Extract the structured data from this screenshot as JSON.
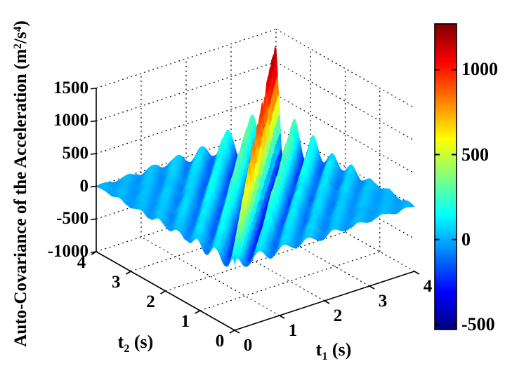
{
  "figure": {
    "background": "#ffffff",
    "zlabel": {
      "pre": "Auto-Covariance of the Acceleration (m",
      "sup1": "2",
      "mid": "/s",
      "sup2": "4",
      "post": ")"
    },
    "xlabel": {
      "base": "t",
      "sub": "1",
      "unit": " (s)"
    },
    "ylabel": {
      "base": "t",
      "sub": "2",
      "unit": " (s)"
    }
  },
  "chart_data": {
    "type": "surface",
    "title": "",
    "x_axis": {
      "label": "t1 (s)",
      "range": [
        0,
        4
      ],
      "ticks": [
        "0",
        "1",
        "2",
        "3",
        "4"
      ],
      "tick_values": [
        0,
        1,
        2,
        3,
        4
      ]
    },
    "y_axis": {
      "label": "t2 (s)",
      "range": [
        0,
        4
      ],
      "ticks": [
        "4",
        "3",
        "2",
        "1",
        "0"
      ],
      "tick_values": [
        4,
        3,
        2,
        1,
        0
      ]
    },
    "z_axis": {
      "label": "Auto-Covariance of the Acceleration (m^2/s^4)",
      "range": [
        -1000,
        1500
      ],
      "ticks": [
        "1500",
        "1000",
        "500",
        "0",
        "-500",
        "-1000"
      ],
      "tick_values": [
        1500,
        1000,
        500,
        0,
        -500,
        -1000
      ]
    },
    "colorbar": {
      "colormap": "jet",
      "cmin": -530,
      "cmax": 1270,
      "tick_labels": [
        "1000",
        "500",
        "0",
        "-500"
      ],
      "tick_values": [
        1000,
        500,
        0,
        -500
      ]
    },
    "grid": "dotted",
    "grid_z_levels": [
      -500,
      0,
      500,
      1000,
      1500
    ],
    "view": "matlab default (az -37.5, el 30), orthographic",
    "surface_model": {
      "description": "Nonstationary auto-covariance surface: oscillatory ridge along the diagonal t1=t2 peaking at ~1270 m^2/s^4 near t1=t2=4; first negative side troughs reach ~-530; oscillation across the diagonal has period ~0.55 s and decays away from the diagonal; amplitude grows along the diagonal; spiky random fluctuations ride on the ridges, plains far from the diagonal are flat near 0.",
      "peak_value": 1270,
      "min_value": -530,
      "ridge_axis": "t1 = t2",
      "cross_period_s": 0.55,
      "envelope_exponent": 0.5,
      "decay": {
        "fast_w": 0.65,
        "fast_len": 0.18,
        "slow_w": 0.35,
        "slow_len": 1.32
      },
      "noise_base": 10,
      "noise_ridge": 150,
      "noise_len": 1.3,
      "grid_n": 150
    }
  }
}
